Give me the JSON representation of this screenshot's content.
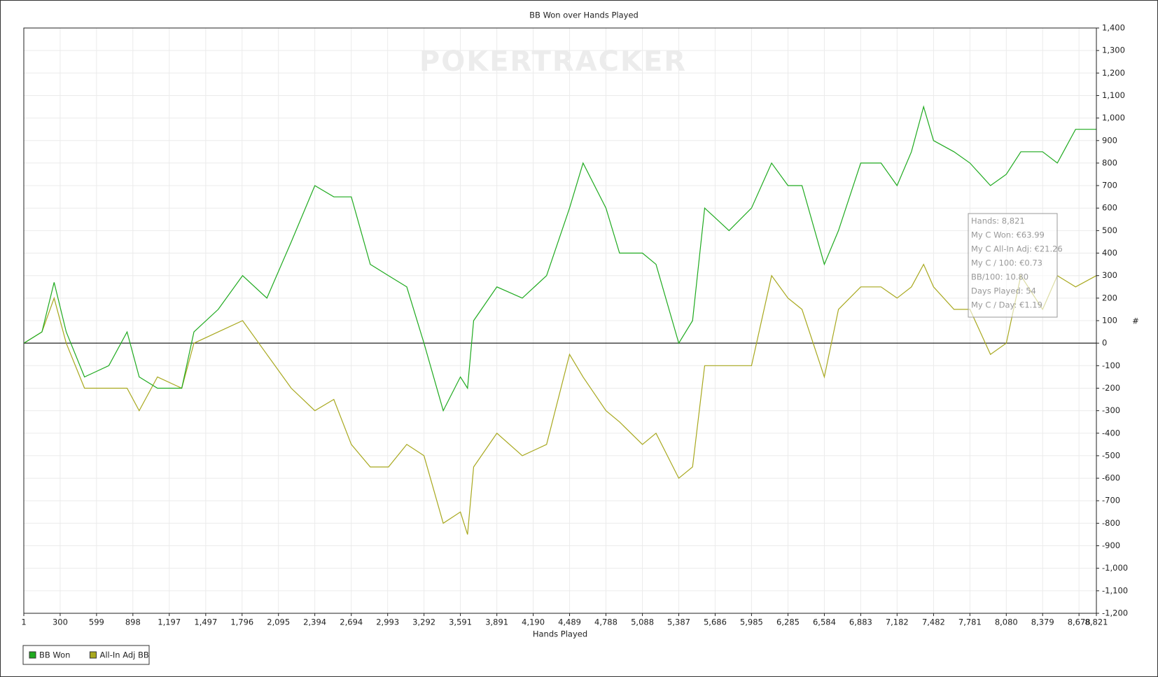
{
  "chart_data": {
    "type": "line",
    "title": "BB Won over Hands Played",
    "x_label": "Hands Played",
    "y_label": "#",
    "watermark": "POKERTRACKER",
    "grid": true,
    "y_axis_side": "right",
    "legend": "bottom-left",
    "xlim": [
      1,
      8821
    ],
    "ylim": [
      -1200,
      1400
    ],
    "xticks": [
      1,
      300,
      599,
      898,
      {
        "value": 1197,
        "label": "1,197"
      },
      {
        "value": 1497,
        "label": "1,497"
      },
      {
        "value": 1796,
        "label": "1,796"
      },
      {
        "value": 2095,
        "label": "2,095"
      },
      {
        "value": 2394,
        "label": "2,394"
      },
      {
        "value": 2694,
        "label": "2,694"
      },
      {
        "value": 2993,
        "label": "2,993"
      },
      {
        "value": 3292,
        "label": "3,292"
      },
      {
        "value": 3591,
        "label": "3,591"
      },
      {
        "value": 3891,
        "label": "3,891"
      },
      {
        "value": 4190,
        "label": "4,190"
      },
      {
        "value": 4489,
        "label": "4,489"
      },
      {
        "value": 4788,
        "label": "4,788"
      },
      {
        "value": 5088,
        "label": "5,088"
      },
      {
        "value": 5387,
        "label": "5,387"
      },
      {
        "value": 5686,
        "label": "5,686"
      },
      {
        "value": 5985,
        "label": "5,985"
      },
      {
        "value": 6285,
        "label": "6,285"
      },
      {
        "value": 6584,
        "label": "6,584"
      },
      {
        "value": 6883,
        "label": "6,883"
      },
      {
        "value": 7182,
        "label": "7,182"
      },
      {
        "value": 7482,
        "label": "7,482"
      },
      {
        "value": 7781,
        "label": "7,781"
      },
      {
        "value": 8080,
        "label": "8,080"
      },
      {
        "value": 8379,
        "label": "8,379"
      },
      {
        "value": 8678,
        "label": "8,678"
      },
      {
        "value": 8821,
        "label": "8,821"
      }
    ],
    "yticks": [
      {
        "value": -1200,
        "label": "-1,200"
      },
      {
        "value": -1100,
        "label": "-1,100"
      },
      {
        "value": -1000,
        "label": "-1,000"
      },
      -900,
      -800,
      -700,
      -600,
      -500,
      -400,
      -300,
      -200,
      -100,
      0,
      100,
      200,
      300,
      400,
      500,
      600,
      700,
      800,
      900,
      {
        "value": 1000,
        "label": "1,000"
      },
      {
        "value": 1100,
        "label": "1,100"
      },
      {
        "value": 1200,
        "label": "1,200"
      },
      {
        "value": 1300,
        "label": "1,300"
      },
      {
        "value": 1400,
        "label": "1,400"
      }
    ],
    "x": [
      1,
      150,
      250,
      350,
      500,
      700,
      850,
      950,
      1100,
      1300,
      1400,
      1600,
      1800,
      2000,
      2200,
      2394,
      2550,
      2694,
      2850,
      3000,
      3150,
      3292,
      3450,
      3591,
      3650,
      3700,
      3891,
      4100,
      4300,
      4489,
      4600,
      4788,
      4900,
      5088,
      5200,
      5387,
      5500,
      5600,
      5800,
      5985,
      6150,
      6285,
      6400,
      6584,
      6700,
      6883,
      7050,
      7182,
      7300,
      7400,
      7482,
      7650,
      7781,
      7950,
      8080,
      8200,
      8379,
      8500,
      8650,
      8821
    ],
    "series": [
      {
        "name": "BB Won",
        "color": "#1faa1f",
        "values": [
          0,
          50,
          270,
          50,
          -150,
          -100,
          50,
          -150,
          -200,
          -200,
          50,
          150,
          300,
          200,
          450,
          700,
          650,
          650,
          350,
          300,
          250,
          0,
          -300,
          -150,
          -200,
          100,
          250,
          200,
          300,
          600,
          800,
          600,
          400,
          400,
          350,
          0,
          100,
          600,
          500,
          600,
          800,
          700,
          700,
          350,
          500,
          800,
          800,
          700,
          850,
          1050,
          900,
          850,
          800,
          700,
          750,
          850,
          850,
          800,
          950,
          950
        ]
      },
      {
        "name": "All-In Adj BB",
        "color": "#a8a81e",
        "values": [
          0,
          50,
          200,
          0,
          -200,
          -200,
          -200,
          -300,
          -150,
          -200,
          0,
          50,
          100,
          -50,
          -200,
          -300,
          -250,
          -450,
          -550,
          -550,
          -450,
          -500,
          -800,
          -750,
          -850,
          -550,
          -400,
          -500,
          -450,
          -50,
          -150,
          -300,
          -350,
          -450,
          -400,
          -600,
          -550,
          -100,
          -100,
          -100,
          300,
          200,
          150,
          -150,
          150,
          250,
          250,
          200,
          250,
          350,
          250,
          150,
          150,
          -50,
          0,
          300,
          150,
          300,
          250,
          300
        ]
      }
    ],
    "annotations": [
      "Hands: 8,821",
      "My C Won: €63.99",
      "My C All-In Adj: €21.26",
      "My C / 100: €0.73",
      "BB/100: 10.80",
      "Days Played: 54",
      "My C / Day: €1.19"
    ]
  }
}
